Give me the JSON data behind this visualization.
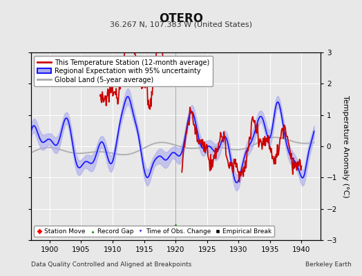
{
  "title": "OTERO",
  "subtitle": "36.267 N, 107.383 W (United States)",
  "xlabel_footer": "Data Quality Controlled and Aligned at Breakpoints",
  "xlabel_footer_right": "Berkeley Earth",
  "ylabel": "Temperature Anomaly (°C)",
  "xlim": [
    1897,
    1943
  ],
  "ylim": [
    -3,
    3
  ],
  "yticks": [
    -3,
    -2,
    -1,
    0,
    1,
    2,
    3
  ],
  "xticks": [
    1900,
    1905,
    1910,
    1915,
    1920,
    1925,
    1930,
    1935,
    1940
  ],
  "background_color": "#e8e8e8",
  "plot_bg_color": "#e8e8e8",
  "grid_color": "#ffffff",
  "record_gap_x": 1920,
  "record_gap_y": -2.6,
  "vline_x": 1920,
  "blue_line_color": "#1a1aff",
  "blue_fill_color": "#aaaaee",
  "red_line_color": "#cc0000",
  "gray_line_color": "#aaaaaa",
  "legend_labels": [
    "This Temperature Station (12-month average)",
    "Regional Expectation with 95% uncertainty",
    "Global Land (5-year average)"
  ],
  "bottom_legend_labels": [
    "Station Move",
    "Record Gap",
    "Time of Obs. Change",
    "Empirical Break"
  ]
}
